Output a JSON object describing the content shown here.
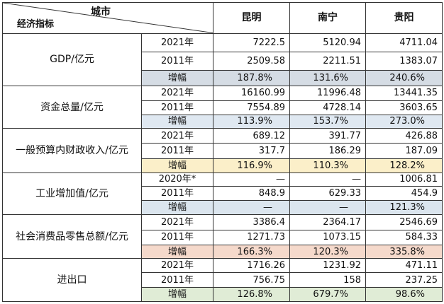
{
  "header": {
    "corner_top": "城市",
    "corner_bottom": "经济指标",
    "cities": [
      "昆明",
      "南宁",
      "贵阳"
    ]
  },
  "sections": [
    {
      "indicator": "GDP/亿元",
      "color": "#d5dce4",
      "rows": [
        {
          "year": "2021年",
          "values": [
            "7222.5",
            "5120.94",
            "4711.04"
          ]
        },
        {
          "year": "2011年",
          "values": [
            "2509.58",
            "2211.51",
            "1383.07"
          ]
        },
        {
          "year": "增幅",
          "values": [
            "187.8%",
            "131.6%",
            "240.6%"
          ]
        }
      ]
    },
    {
      "indicator": "资金总量/亿元",
      "color": "#dfe8f1",
      "rows": [
        {
          "year": "2021年",
          "values": [
            "16160.99",
            "11996.48",
            "13441.35"
          ]
        },
        {
          "year": "2011年",
          "values": [
            "7554.89",
            "4728.14",
            "3603.65"
          ]
        },
        {
          "year": "增幅",
          "values": [
            "113.9%",
            "153.7%",
            "273.0%"
          ]
        }
      ]
    },
    {
      "indicator": "一般预算内财政收入/亿元",
      "color": "#fbefc9",
      "rows": [
        {
          "year": "2021年",
          "values": [
            "689.12",
            "391.77",
            "426.88"
          ]
        },
        {
          "year": "2011年",
          "values": [
            "317.7",
            "186.29",
            "187.09"
          ]
        },
        {
          "year": "增幅",
          "values": [
            "116.9%",
            "110.3%",
            "128.2%"
          ]
        }
      ]
    },
    {
      "indicator": "工业增加值/亿元",
      "color": "#dbe5ee",
      "rows": [
        {
          "year": "2020年*",
          "values": [
            "—",
            "—",
            "1006.81"
          ]
        },
        {
          "year": "2011年",
          "values": [
            "848.9",
            "629.33",
            "454.9"
          ]
        },
        {
          "year": "增幅",
          "values": [
            "—",
            "—",
            "121.3%"
          ]
        }
      ]
    },
    {
      "indicator": "社会消费品零售总额/亿元",
      "color": "#f5d9cb",
      "rows": [
        {
          "year": "2021年",
          "values": [
            "3386.4",
            "2364.17",
            "2546.69"
          ]
        },
        {
          "year": "2011年",
          "values": [
            "1271.73",
            "1073.15",
            "584.33"
          ]
        },
        {
          "year": "增幅",
          "values": [
            "166.3%",
            "120.3%",
            "335.8%"
          ]
        }
      ]
    },
    {
      "indicator": "进出口",
      "color": "#e0ecd6",
      "rows": [
        {
          "year": "2021年",
          "values": [
            "1716.26",
            "1231.92",
            "471.11"
          ]
        },
        {
          "year": "2011年",
          "values": [
            "756.75",
            "158",
            "237.25"
          ]
        },
        {
          "year": "增幅",
          "values": [
            "126.8%",
            "679.7%",
            "98.6%"
          ]
        }
      ]
    }
  ]
}
